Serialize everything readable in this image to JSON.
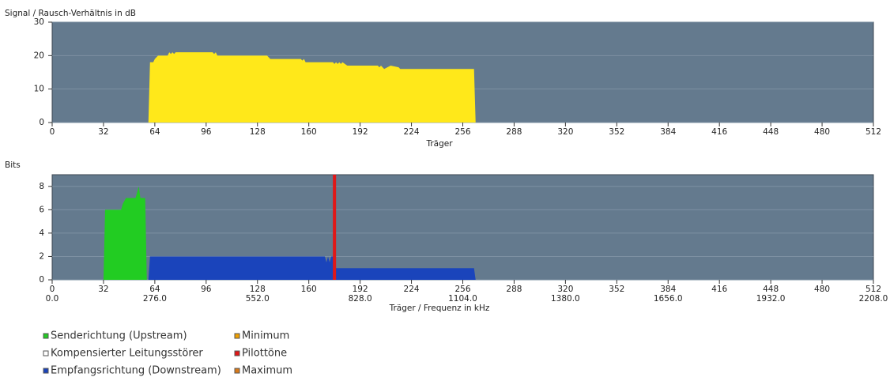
{
  "chart_data": [
    {
      "type": "area",
      "y_label": "Signal / Rausch-Verhältnis in dB",
      "x_label": "Träger",
      "xlim": [
        0,
        512
      ],
      "xticks": [
        0,
        32,
        64,
        96,
        128,
        160,
        192,
        224,
        256,
        288,
        320,
        352,
        384,
        416,
        448,
        480,
        512
      ],
      "ylim": [
        0,
        30
      ],
      "yticks": [
        0,
        10,
        20,
        30
      ],
      "grid": true,
      "color": "#ffe81a",
      "x": [
        60,
        61,
        63,
        64,
        66,
        72,
        73,
        74,
        75,
        76,
        77,
        100,
        101,
        102,
        103,
        132,
        134,
        135,
        136,
        155,
        156,
        157,
        158,
        175,
        176,
        177,
        178,
        179,
        180,
        181,
        184,
        203,
        204,
        205,
        207,
        209,
        211,
        216,
        217,
        263,
        264
      ],
      "values": [
        0,
        18,
        18,
        19,
        20,
        20,
        21,
        20.5,
        21,
        20.5,
        21,
        21,
        20.5,
        21,
        20,
        20,
        20,
        19.5,
        19,
        19,
        18.5,
        19,
        18,
        18,
        17.5,
        18,
        17.5,
        18,
        17.5,
        18,
        17,
        17,
        16.5,
        17,
        16,
        16.5,
        17,
        16.5,
        16,
        16,
        0
      ]
    },
    {
      "type": "area",
      "y_label": "Bits",
      "x_label": "Träger / Frequenz in kHz",
      "xlim": [
        0,
        512
      ],
      "xticks": [
        0,
        32,
        64,
        96,
        128,
        160,
        192,
        224,
        256,
        288,
        320,
        352,
        384,
        416,
        448,
        480,
        512
      ],
      "x2lim": [
        0,
        2208
      ],
      "x2ticks": [
        {
          "value": 0,
          "label": "0.0"
        },
        {
          "value": 276,
          "label": "276.0"
        },
        {
          "value": 552,
          "label": "552.0"
        },
        {
          "value": 828,
          "label": "828.0"
        },
        {
          "value": 1104,
          "label": "1104.0"
        },
        {
          "value": 1380,
          "label": "1380.0"
        },
        {
          "value": 1656,
          "label": "1656.0"
        },
        {
          "value": 1932,
          "label": "1932.0"
        },
        {
          "value": 2208,
          "label": "2208.0"
        }
      ],
      "ylim": [
        0,
        9
      ],
      "yticks": [
        0,
        2,
        4,
        6,
        8
      ],
      "grid": true,
      "series": [
        {
          "name": "Senderichtung (Upstream)",
          "color": "#22cc22",
          "kind": "area",
          "x": [
            32,
            33,
            43,
            44,
            46,
            52,
            53,
            54,
            55,
            58,
            59
          ],
          "values": [
            0,
            6,
            6,
            6.5,
            7,
            7,
            7.5,
            8,
            7,
            7,
            0
          ]
        },
        {
          "name": "Kompensierter Leitungsstörer",
          "color": "#ffffff",
          "kind": "area",
          "x": [],
          "values": []
        },
        {
          "name": "Empfangsrichtung (Downstream)",
          "color": "#1a44bb",
          "kind": "area",
          "x": [
            60,
            61,
            170,
            171,
            172,
            173,
            174,
            176,
            177,
            263,
            264
          ],
          "values": [
            0,
            2,
            2,
            1.5,
            2,
            1.5,
            2,
            2,
            1,
            1,
            0
          ]
        },
        {
          "name": "Minimum",
          "color": "#f0a000",
          "kind": "area",
          "x": [],
          "values": []
        },
        {
          "name": "Pilottöne",
          "color": "#e01818",
          "kind": "vline",
          "x": [
            176
          ],
          "values": [
            9
          ]
        },
        {
          "name": "Maximum",
          "color": "#d97a1a",
          "kind": "area",
          "x": [],
          "values": []
        }
      ]
    }
  ]
}
